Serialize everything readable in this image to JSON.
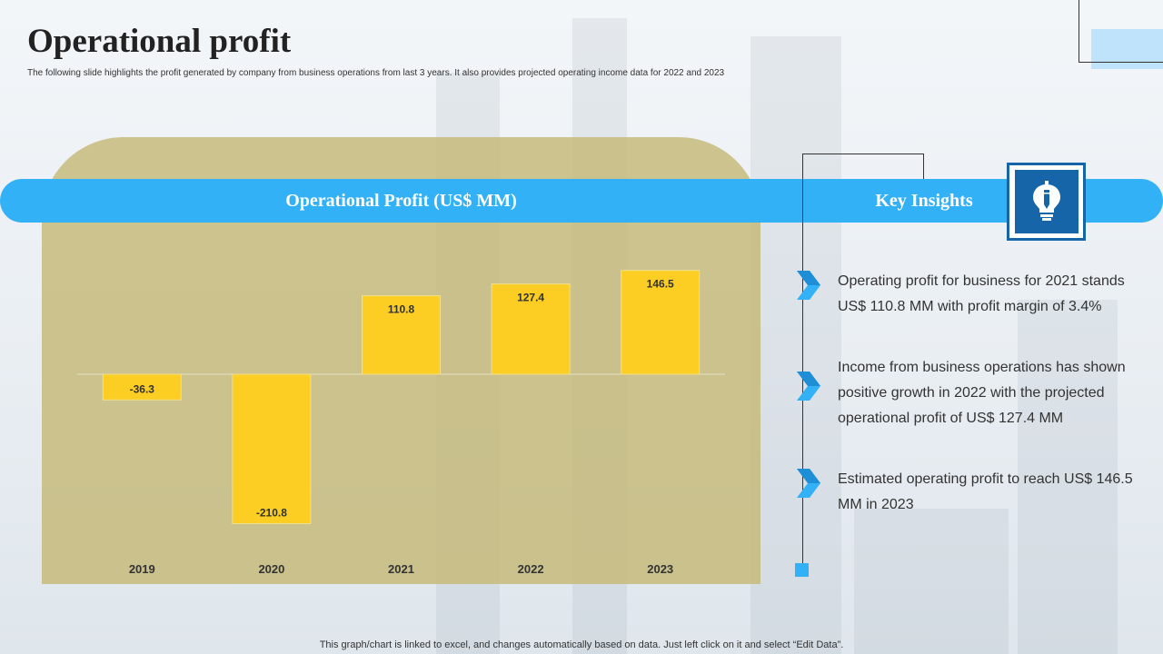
{
  "header": {
    "title": "Operational profit",
    "subtitle": "The following slide highlights the profit generated by  company from business operations from  last 3 years. It also provides projected operating income data  for 2022 and 2023"
  },
  "chart_panel": {
    "heading": "Operational  Profit (US$ MM)"
  },
  "insights_panel": {
    "heading": "Key Insights",
    "icon": "lightbulb-pencil-icon",
    "items": [
      {
        "text": "Operating profit for business for 2021 stands US$ 110.8 MM with profit margin of 3.4%"
      },
      {
        "text": "Income  from business operations has shown positive growth  in 2022 with the projected operational profit of  US$ 127.4 MM"
      },
      {
        "text": "Estimated  operating profit to reach US$ 146.5 MM in 2023"
      }
    ]
  },
  "footer": {
    "note": "This graph/chart is linked to excel, and changes automatically based on data. Just left click on it and select “Edit Data”."
  },
  "colors": {
    "accent": "#33b1f7",
    "bar": "#fccd22",
    "panel": "#c4b878",
    "icon_box": "#1565a8"
  },
  "chart_data": {
    "type": "bar",
    "title": "Operational  Profit (US$ MM)",
    "categories": [
      "2019",
      "2020",
      "2021",
      "2022",
      "2023"
    ],
    "values": [
      -36.3,
      -210.8,
      110.8,
      127.4,
      146.5
    ],
    "value_labels": [
      "-36.3",
      "-210.8",
      "110.8",
      "127.4",
      "146.5"
    ],
    "xlabel": "",
    "ylabel": "",
    "grid": false,
    "legend": "none"
  }
}
